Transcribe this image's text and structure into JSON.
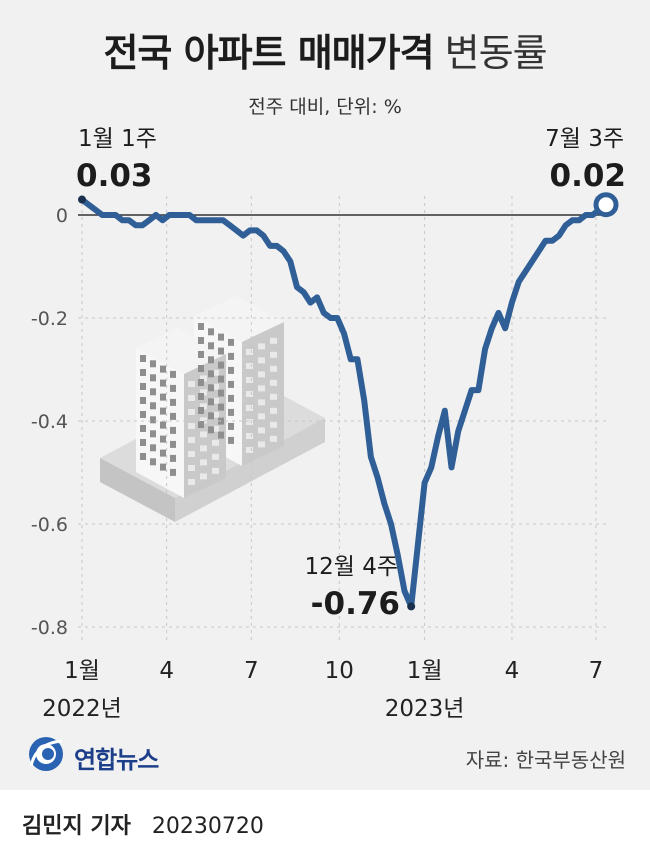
{
  "header": {
    "title_bold": "전국 아파트 매매가격",
    "title_regular": "변동률",
    "subtitle": "전주 대비, 단위: %"
  },
  "colors": {
    "line": "#2f5f96",
    "axis": "#333333",
    "grid": "#c8c8c8",
    "panel": "#f1f1f1"
  },
  "annotations": {
    "start": {
      "label": "1월 1주",
      "value": "0.03"
    },
    "end": {
      "label": "7월 3주",
      "value": "0.02"
    },
    "min": {
      "label": "12월 4주",
      "value": "-0.76"
    }
  },
  "chart_data": {
    "type": "line",
    "title": "전국 아파트 매매가격 변동률",
    "subtitle": "전주 대비, 단위: %",
    "ylim": [
      -0.8,
      0.05
    ],
    "yticks": [
      "0",
      "-0.2",
      "-0.4",
      "-0.6",
      "-0.8"
    ],
    "ytick_values": [
      0,
      -0.2,
      -0.4,
      -0.6,
      -0.8
    ],
    "xticks": [
      {
        "label": "1월",
        "week": 0
      },
      {
        "label": "4",
        "week": 12.6
      },
      {
        "label": "7",
        "week": 25.2
      },
      {
        "label": "10",
        "week": 38.3
      },
      {
        "label": "1월",
        "week": 51
      },
      {
        "label": "4",
        "week": 64
      },
      {
        "label": "7",
        "week": 76.5
      }
    ],
    "year_labels": [
      {
        "label": "2022년",
        "week": 0
      },
      {
        "label": "2023년",
        "week": 51
      }
    ],
    "grid": true,
    "series": [
      {
        "values": [
          0.03,
          0.02,
          0.01,
          0.0,
          0.0,
          0.0,
          -0.01,
          -0.01,
          -0.02,
          -0.02,
          -0.01,
          0.0,
          -0.01,
          0.0,
          0.0,
          0.0,
          0.0,
          -0.01,
          -0.01,
          -0.01,
          -0.01,
          -0.01,
          -0.02,
          -0.03,
          -0.04,
          -0.03,
          -0.03,
          -0.04,
          -0.06,
          -0.06,
          -0.07,
          -0.09,
          -0.14,
          -0.15,
          -0.17,
          -0.16,
          -0.19,
          -0.2,
          -0.2,
          -0.23,
          -0.28,
          -0.28,
          -0.36,
          -0.47,
          -0.51,
          -0.56,
          -0.6,
          -0.66,
          -0.73,
          -0.76,
          -0.64,
          -0.52,
          -0.49,
          -0.43,
          -0.38,
          -0.49,
          -0.42,
          -0.38,
          -0.34,
          -0.34,
          -0.26,
          -0.22,
          -0.19,
          -0.22,
          -0.17,
          -0.13,
          -0.11,
          -0.09,
          -0.07,
          -0.05,
          -0.05,
          -0.04,
          -0.02,
          -0.01,
          -0.01,
          0.0,
          0.0,
          0.01,
          0.02
        ]
      }
    ]
  },
  "footer": {
    "source": "자료: 한국부동산원",
    "agency": "연합뉴스",
    "reporter": "김민지 기자",
    "date": "20230720"
  }
}
